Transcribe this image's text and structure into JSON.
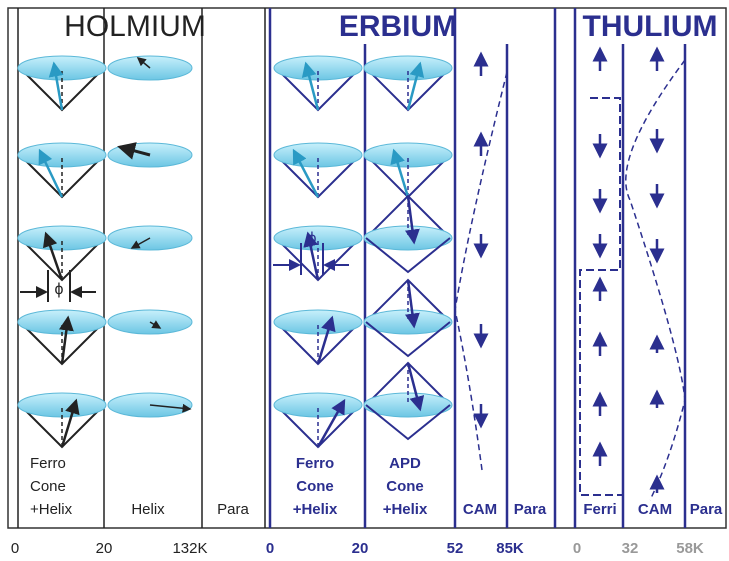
{
  "panels": [
    {
      "title": "HOLMIUM",
      "columns": [
        [
          "Ferro",
          "Cone",
          "+Helix"
        ],
        [
          "Helix"
        ],
        [
          "Para"
        ]
      ],
      "temperatures": [
        "0",
        "20",
        "132K"
      ]
    },
    {
      "title": "ERBIUM",
      "columns": [
        [
          "Ferro",
          "Cone",
          "+Helix"
        ],
        [
          "APD",
          "Cone",
          "+Helix"
        ],
        [
          "CAM"
        ],
        [
          "Para"
        ]
      ],
      "temperatures": [
        "0",
        "20",
        "52",
        "85K"
      ]
    },
    {
      "title": "THULIUM",
      "columns": [
        [
          "Ferri"
        ],
        [
          "CAM"
        ],
        [
          "Para"
        ]
      ],
      "temperatures": [
        "0",
        "32",
        "58K"
      ]
    }
  ],
  "phi_labels": [
    "ϕ",
    "ϕ"
  ]
}
